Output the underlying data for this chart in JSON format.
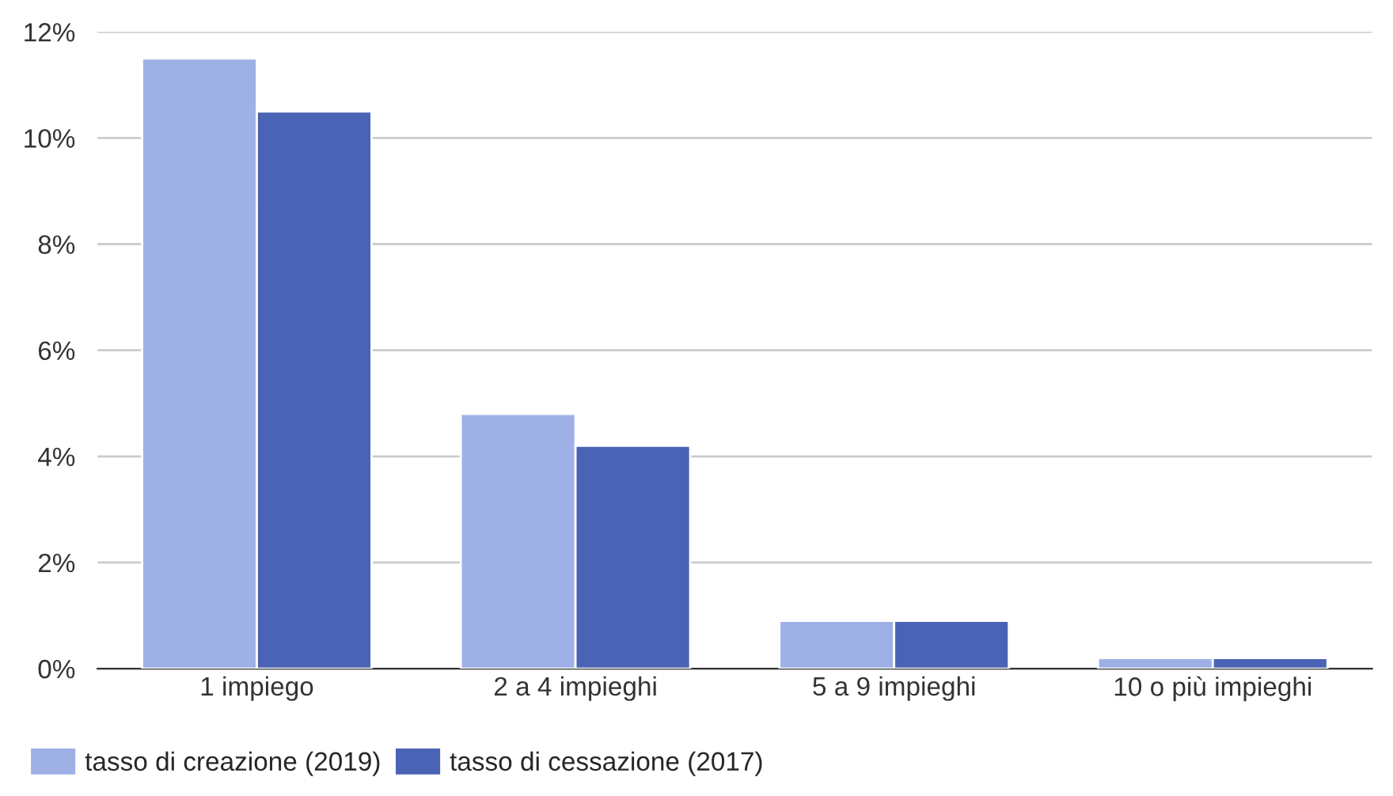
{
  "chart_data": {
    "type": "bar",
    "categories": [
      "1 impiego",
      "2 a 4 impieghi",
      "5 a 9 impieghi",
      "10 o più impieghi"
    ],
    "series": [
      {
        "name": "tasso di creazione (2019)",
        "color": "#9eb0e6",
        "values": [
          11.5,
          4.8,
          0.9,
          0.2
        ]
      },
      {
        "name": "tasso di cessazione (2017)",
        "color": "#4a63b4",
        "values": [
          10.5,
          4.2,
          0.9,
          0.2
        ]
      }
    ],
    "ylim": [
      0,
      12
    ],
    "yticks": [
      {
        "value": 0,
        "label": "0%"
      },
      {
        "value": 2,
        "label": "2%"
      },
      {
        "value": 4,
        "label": "4%"
      },
      {
        "value": 6,
        "label": "6%"
      },
      {
        "value": 8,
        "label": "8%"
      },
      {
        "value": 10,
        "label": "10%"
      },
      {
        "value": 12,
        "label": "12%"
      }
    ],
    "grid": "y",
    "legend": "bottom left"
  }
}
